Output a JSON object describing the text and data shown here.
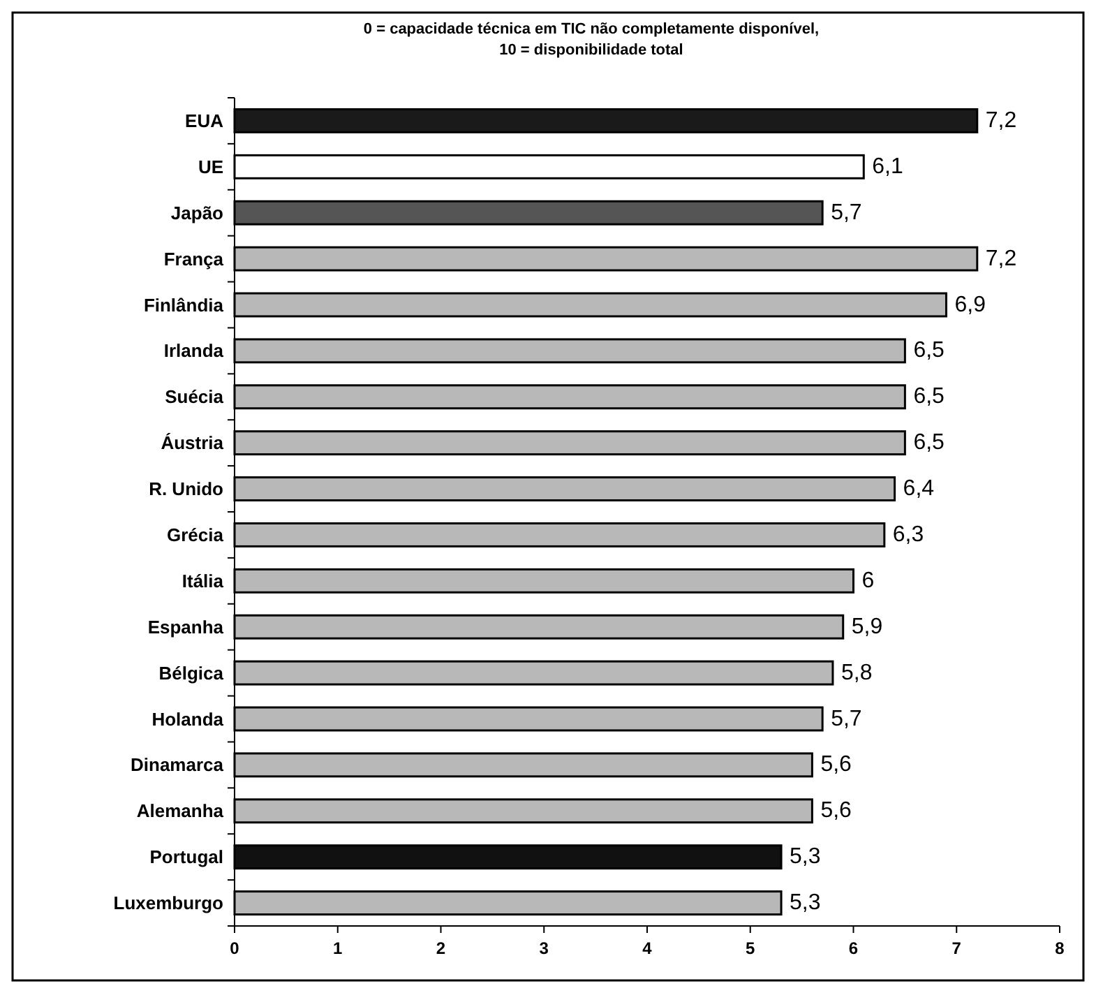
{
  "chart_data": {
    "type": "bar",
    "orientation": "horizontal",
    "title": "0 = capacidade técnica em TIC não completamente disponível,\n10 = disponibilidade total",
    "categories": [
      "EUA",
      "UE",
      "Japão",
      "França",
      "Finlândia",
      "Irlanda",
      "Suécia",
      "Áustria",
      "R. Unido",
      "Grécia",
      "Itália",
      "Espanha",
      "Bélgica",
      "Holanda",
      "Dinamarca",
      "Alemanha",
      "Portugal",
      "Luxemburgo"
    ],
    "values": [
      7.2,
      6.1,
      5.7,
      7.2,
      6.9,
      6.5,
      6.5,
      6.5,
      6.4,
      6.3,
      6,
      5.9,
      5.8,
      5.7,
      5.6,
      5.6,
      5.3,
      5.3
    ],
    "value_labels": [
      "7,2",
      "6,1",
      "5,7",
      "7,2",
      "6,9",
      "6,5",
      "6,5",
      "6,5",
      "6,4",
      "6,3",
      "6",
      "5,9",
      "5,8",
      "5,7",
      "5,6",
      "5,6",
      "5,3",
      "5,3"
    ],
    "colors": [
      "#1a1a1a",
      "#ffffff",
      "#555555",
      "#b8b8b8",
      "#b8b8b8",
      "#b8b8b8",
      "#b8b8b8",
      "#b8b8b8",
      "#b8b8b8",
      "#b8b8b8",
      "#b8b8b8",
      "#b8b8b8",
      "#b8b8b8",
      "#b8b8b8",
      "#b8b8b8",
      "#b8b8b8",
      "#111111",
      "#b8b8b8"
    ],
    "xlim": [
      0,
      8
    ],
    "xticks": [
      0,
      1,
      2,
      3,
      4,
      5,
      6,
      7,
      8
    ],
    "grid": false
  }
}
